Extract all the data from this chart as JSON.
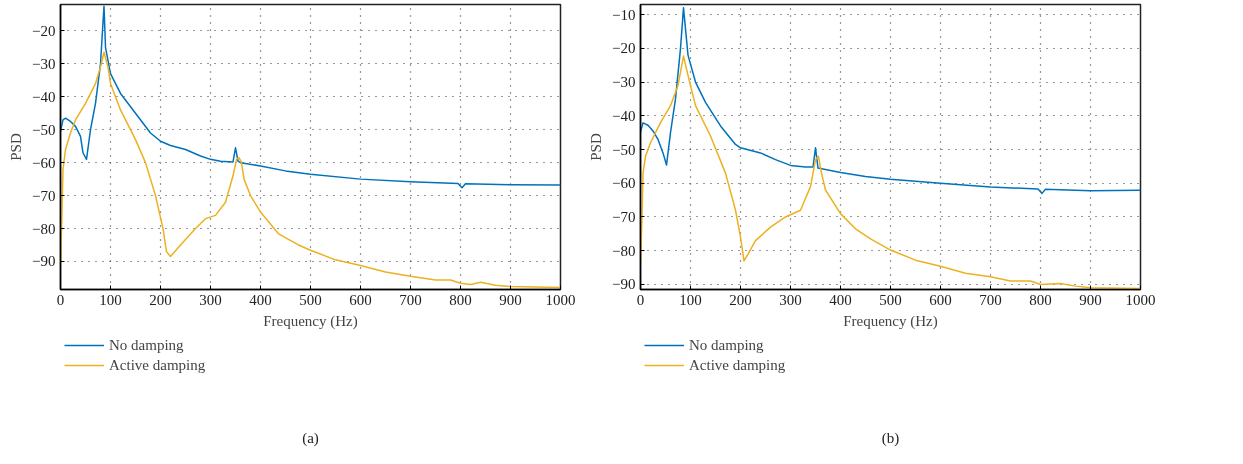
{
  "chart_data": [
    {
      "type": "line",
      "xlabel": "Frequency (Hz)",
      "ylabel": "PSD",
      "annotations": [
        "(a)"
      ],
      "xlim": [
        0,
        1000
      ],
      "ylim": [
        -98.5,
        -12
      ],
      "xticks": [
        0,
        100,
        200,
        300,
        400,
        500,
        600,
        700,
        800,
        900,
        1000
      ],
      "yticks": [
        -90,
        -80,
        -70,
        -60,
        -50,
        -40,
        -30,
        -20
      ],
      "grid": true,
      "legend": "bottom",
      "series": [
        {
          "name": "No damping",
          "color": "#0072bd",
          "x": [
            0,
            5,
            10,
            20,
            30,
            40,
            45,
            52,
            60,
            70,
            80,
            87,
            90,
            100,
            120,
            150,
            180,
            200,
            220,
            250,
            280,
            300,
            320,
            345,
            350,
            355,
            360,
            400,
            450,
            500,
            600,
            700,
            795,
            803,
            810,
            900,
            1000
          ],
          "values": [
            -50.5,
            -47,
            -46.5,
            -47.5,
            -49,
            -52,
            -57,
            -59,
            -50,
            -42,
            -30,
            -12.5,
            -25,
            -33,
            -39,
            -45,
            -51,
            -53.5,
            -54.8,
            -56,
            -58,
            -59,
            -59.6,
            -59.8,
            -55.5,
            -59.5,
            -60,
            -61,
            -62.5,
            -63.5,
            -65,
            -65.8,
            -66.3,
            -67.6,
            -66.4,
            -66.7,
            -66.8
          ]
        },
        {
          "name": "Active damping",
          "color": "#edb120",
          "x": [
            0,
            3,
            5,
            10,
            20,
            30,
            50,
            70,
            80,
            87,
            95,
            100,
            120,
            150,
            170,
            190,
            205,
            212,
            220,
            240,
            270,
            290,
            310,
            330,
            345,
            352,
            357,
            362,
            367,
            380,
            400,
            436,
            475,
            500,
            550,
            600,
            650,
            700,
            750,
            780,
            800,
            820,
            840,
            870,
            900,
            1000
          ],
          "values": [
            -91,
            -75,
            -62,
            -56,
            -51,
            -47,
            -42,
            -36,
            -31,
            -26.5,
            -31,
            -36,
            -44,
            -53,
            -60,
            -70,
            -80,
            -87,
            -88.5,
            -85,
            -80,
            -77,
            -76,
            -72,
            -64,
            -59,
            -58.5,
            -60,
            -65,
            -70,
            -75,
            -81.6,
            -84.9,
            -86.6,
            -89.5,
            -91.2,
            -93.2,
            -94.5,
            -95.6,
            -95.6,
            -96.6,
            -97,
            -96.3,
            -97.2,
            -97.6,
            -97.9
          ]
        }
      ]
    },
    {
      "type": "line",
      "xlabel": "Frequency (Hz)",
      "ylabel": "PSD",
      "annotations": [
        "(b)"
      ],
      "xlim": [
        0,
        1000
      ],
      "ylim": [
        -91.5,
        -7
      ],
      "xticks": [
        0,
        100,
        200,
        300,
        400,
        500,
        600,
        700,
        800,
        900,
        1000
      ],
      "yticks": [
        -90,
        -80,
        -70,
        -60,
        -50,
        -40,
        -30,
        -20,
        -10
      ],
      "grid": true,
      "legend": "bottom",
      "series": [
        {
          "name": "No damping",
          "color": "#0072bd",
          "x": [
            0,
            5,
            15,
            25,
            35,
            45,
            52,
            60,
            70,
            80,
            86,
            95,
            110,
            130,
            160,
            190,
            200,
            240,
            270,
            300,
            330,
            345,
            350,
            355,
            400,
            450,
            500,
            600,
            700,
            795,
            803,
            810,
            900,
            1000
          ],
          "values": [
            -44.8,
            -42.1,
            -42.8,
            -44.5,
            -47,
            -51,
            -54.6,
            -45,
            -35,
            -20,
            -8,
            -22,
            -30,
            -36,
            -43,
            -48.5,
            -49.5,
            -51,
            -53,
            -54.7,
            -55.2,
            -55.2,
            -49.5,
            -55.5,
            -56.8,
            -58,
            -58.8,
            -60,
            -61.1,
            -61.7,
            -63,
            -61.8,
            -62.2,
            -62.1
          ]
        },
        {
          "name": "Active damping",
          "color": "#edb120",
          "x": [
            0,
            3,
            5,
            10,
            20,
            40,
            60,
            75,
            86,
            95,
            110,
            140,
            170,
            190,
            200,
            207,
            215,
            230,
            260,
            290,
            320,
            340,
            350,
            356,
            362,
            370,
            400,
            430,
            460,
            500,
            550,
            600,
            650,
            700,
            740,
            780,
            800,
            840,
            870,
            900,
            1000
          ],
          "values": [
            -83.5,
            -70,
            -57,
            -52,
            -48,
            -42,
            -37,
            -31,
            -22.3,
            -28,
            -37,
            -46,
            -57,
            -68,
            -76,
            -83,
            -81,
            -77,
            -73,
            -70,
            -68,
            -61,
            -53,
            -52,
            -57,
            -62,
            -69,
            -73.5,
            -76.5,
            -79.8,
            -82.8,
            -84.6,
            -86.7,
            -87.7,
            -89,
            -89,
            -90,
            -89.7,
            -90.5,
            -91,
            -91.2
          ]
        }
      ]
    }
  ]
}
